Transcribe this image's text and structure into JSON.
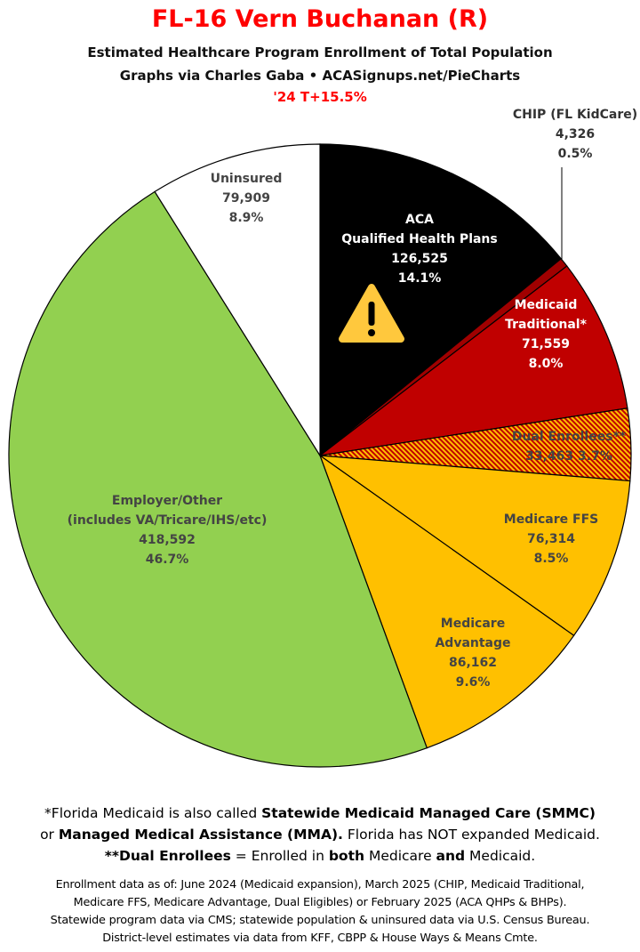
{
  "header": {
    "title": "FL-16 Vern Buchanan (R)",
    "subtitle": "Estimated Healthcare Program Enrollment of Total Population",
    "credit": "Graphs via Charles Gaba  •  ACASignups.net/PieCharts",
    "trump_margin": "'24 T+15.5%"
  },
  "chart_data": {
    "type": "pie",
    "start": "top, clockwise",
    "slices": [
      {
        "label": "ACA",
        "label2": "Qualified Health Plans",
        "value": 126525,
        "value_text": "126,525",
        "pct": "14.1%",
        "color": "#000000",
        "icon": "warning-icon"
      },
      {
        "label": "CHIP (FL KidCare)",
        "value": 4326,
        "value_text": "4,326",
        "pct": "0.5%",
        "color": "#a00000"
      },
      {
        "label": "Medicaid",
        "label2": "Traditional*",
        "value": 71559,
        "value_text": "71,559",
        "pct": "8.0%",
        "color": "#c00000"
      },
      {
        "label": "Dual Enrollees**",
        "value": 33463,
        "value_text": "33,463",
        "pct": "3.7%",
        "color": "#ffc000",
        "hatch": "#c00000"
      },
      {
        "label": "Medicare FFS",
        "value": 76314,
        "value_text": "76,314",
        "pct": "8.5%",
        "color": "#ffc000"
      },
      {
        "label": "Medicare",
        "label2": "Advantage",
        "value": 86162,
        "value_text": "86,162",
        "pct": "9.6%",
        "color": "#ffc000"
      },
      {
        "label": "Employer/Other",
        "label2": "(includes VA/Tricare/IHS/etc)",
        "value": 418592,
        "value_text": "418,592",
        "pct": "46.7%",
        "color": "#92d050"
      },
      {
        "label": "Uninsured",
        "value": 79909,
        "value_text": "79,909",
        "pct": "8.9%",
        "color": "#ffffff"
      }
    ]
  },
  "notes": {
    "l1a": "*Florida Medicaid is also called ",
    "l1b": "Statewide Medicaid Managed Care (SMMC)",
    "l2a": "or ",
    "l2b": "Managed Medical Assistance (MMA).",
    "l2c": " Florida has NOT expanded Medicaid.",
    "l3a": "**Dual Enrollees",
    "l3b": " = Enrolled in ",
    "l3c": "both",
    "l3d": " Medicare ",
    "l3e": "and",
    "l3f": " Medicaid."
  },
  "sources": [
    "Enrollment data as of: June 2024 (Medicaid expansion), March 2025 (CHIP, Medicaid Traditional,",
    "Medicare FFS, Medicare Advantage, Dual Eligibles) or February 2025 (ACA QHPs & BHPs).",
    "Statewide program data via CMS; statewide population & uninsured data via U.S. Census Bureau.",
    "District-level estimates via data from KFF, CBPP & House Ways & Means Cmte."
  ]
}
